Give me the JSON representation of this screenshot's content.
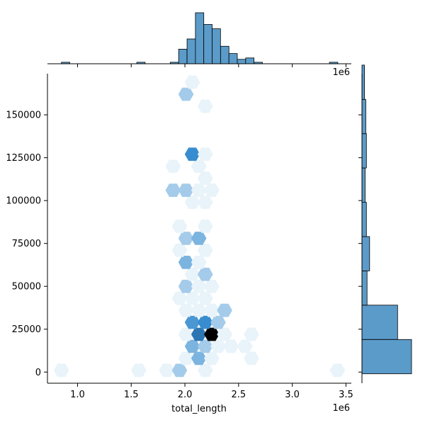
{
  "chart_data": {
    "type": "hexbin-jointplot",
    "title": "",
    "xlabel": "total_length",
    "ylabel": "",
    "x_offset_text": "1e6",
    "top_offset_text": "1e6",
    "xlim": [
      0.72,
      3.55
    ],
    "ylim": [
      -6500,
      174000
    ],
    "x_ticks": [
      1.0,
      1.5,
      2.0,
      2.5,
      3.0,
      3.5
    ],
    "x_tick_labels": [
      "1.0",
      "1.5",
      "2.0",
      "2.5",
      "3.0",
      "3.5"
    ],
    "y_ticks": [
      0,
      25000,
      50000,
      75000,
      100000,
      125000,
      150000
    ],
    "y_tick_labels": [
      "0",
      "25000",
      "50000",
      "75000",
      "100000",
      "125000",
      "150000"
    ],
    "grid": false,
    "legend": "none",
    "colors": {
      "hist_fill": "#5b9bc9",
      "hist_edge": "#000000",
      "hex_dark": "#000000"
    },
    "hexbins": [
      {
        "x": 0.85,
        "y": 1000,
        "count": 1
      },
      {
        "x": 1.57,
        "y": 1000,
        "count": 1
      },
      {
        "x": 1.83,
        "y": 1000,
        "count": 1
      },
      {
        "x": 1.95,
        "y": 1000,
        "count": 2
      },
      {
        "x": 2.19,
        "y": 1000,
        "count": 1
      },
      {
        "x": 3.42,
        "y": 1000,
        "count": 1
      },
      {
        "x": 2.01,
        "y": 8000,
        "count": 1
      },
      {
        "x": 2.13,
        "y": 8000,
        "count": 3
      },
      {
        "x": 2.25,
        "y": 8000,
        "count": 1
      },
      {
        "x": 2.62,
        "y": 8000,
        "count": 1
      },
      {
        "x": 2.07,
        "y": 15000,
        "count": 3
      },
      {
        "x": 2.19,
        "y": 15000,
        "count": 2
      },
      {
        "x": 2.31,
        "y": 15000,
        "count": 1
      },
      {
        "x": 2.43,
        "y": 15000,
        "count": 1
      },
      {
        "x": 2.56,
        "y": 15000,
        "count": 1
      },
      {
        "x": 2.01,
        "y": 22000,
        "count": 1
      },
      {
        "x": 2.13,
        "y": 22000,
        "count": 7
      },
      {
        "x": 2.25,
        "y": 22000,
        "count": 12
      },
      {
        "x": 2.37,
        "y": 22000,
        "count": 1
      },
      {
        "x": 2.62,
        "y": 22000,
        "count": 1
      },
      {
        "x": 2.07,
        "y": 29000,
        "count": 5
      },
      {
        "x": 2.19,
        "y": 29000,
        "count": 6
      },
      {
        "x": 2.31,
        "y": 29000,
        "count": 2
      },
      {
        "x": 2.01,
        "y": 36000,
        "count": 1
      },
      {
        "x": 2.13,
        "y": 36000,
        "count": 1
      },
      {
        "x": 2.25,
        "y": 36000,
        "count": 1
      },
      {
        "x": 2.37,
        "y": 36000,
        "count": 2
      },
      {
        "x": 1.95,
        "y": 43000,
        "count": 1
      },
      {
        "x": 2.07,
        "y": 43000,
        "count": 1
      },
      {
        "x": 2.19,
        "y": 43000,
        "count": 1
      },
      {
        "x": 2.01,
        "y": 50000,
        "count": 2
      },
      {
        "x": 2.13,
        "y": 50000,
        "count": 1
      },
      {
        "x": 2.25,
        "y": 50000,
        "count": 1
      },
      {
        "x": 2.07,
        "y": 57000,
        "count": 1
      },
      {
        "x": 2.19,
        "y": 57000,
        "count": 2
      },
      {
        "x": 2.01,
        "y": 64000,
        "count": 3
      },
      {
        "x": 2.13,
        "y": 64000,
        "count": 1
      },
      {
        "x": 1.95,
        "y": 71000,
        "count": 1
      },
      {
        "x": 2.19,
        "y": 71000,
        "count": 1
      },
      {
        "x": 2.01,
        "y": 78000,
        "count": 2
      },
      {
        "x": 2.13,
        "y": 78000,
        "count": 3
      },
      {
        "x": 1.95,
        "y": 85000,
        "count": 1
      },
      {
        "x": 2.19,
        "y": 85000,
        "count": 1
      },
      {
        "x": 2.07,
        "y": 99000,
        "count": 1
      },
      {
        "x": 2.19,
        "y": 99000,
        "count": 1
      },
      {
        "x": 1.89,
        "y": 106000,
        "count": 2
      },
      {
        "x": 2.01,
        "y": 106000,
        "count": 2
      },
      {
        "x": 2.13,
        "y": 106000,
        "count": 1
      },
      {
        "x": 2.25,
        "y": 106000,
        "count": 1
      },
      {
        "x": 2.19,
        "y": 113000,
        "count": 1
      },
      {
        "x": 1.89,
        "y": 120000,
        "count": 1
      },
      {
        "x": 2.13,
        "y": 120000,
        "count": 1
      },
      {
        "x": 2.07,
        "y": 127000,
        "count": 6
      },
      {
        "x": 2.19,
        "y": 127000,
        "count": 1
      },
      {
        "x": 2.19,
        "y": 155000,
        "count": 1
      },
      {
        "x": 2.01,
        "y": 162000,
        "count": 2
      },
      {
        "x": 2.07,
        "y": 169000,
        "count": 1
      }
    ],
    "x_histogram": {
      "bin_edges": [
        0.85,
        0.928,
        1.006,
        1.084,
        1.162,
        1.24,
        1.318,
        1.396,
        1.474,
        1.552,
        1.63,
        1.708,
        1.786,
        1.864,
        1.942,
        2.02,
        2.098,
        2.176,
        2.254,
        2.332,
        2.41,
        2.488,
        2.566,
        2.644,
        2.722,
        2.8,
        2.878,
        2.956,
        3.034,
        3.112,
        3.19,
        3.268,
        3.346,
        3.424
      ],
      "counts": [
        1,
        0,
        0,
        0,
        0,
        0,
        0,
        0,
        0,
        1,
        0,
        0,
        0,
        1,
        10,
        17,
        35,
        27,
        24,
        12,
        7,
        3,
        4,
        1,
        0,
        0,
        0,
        0,
        0,
        0,
        0,
        0,
        1
      ]
    },
    "y_histogram": {
      "bin_edges": [
        -1000,
        19000,
        39000,
        59000,
        79000,
        99000,
        119000,
        139000,
        159000,
        179000
      ],
      "counts": [
        78,
        56,
        8,
        12,
        7,
        5,
        7,
        6,
        4
      ]
    }
  }
}
